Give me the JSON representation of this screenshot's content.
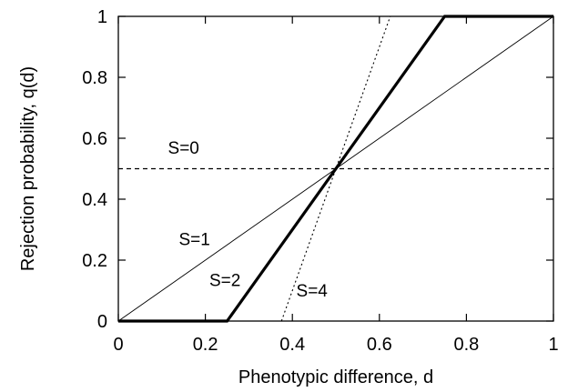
{
  "chart_data": {
    "type": "line",
    "xlabel": "Phenotypic difference, d",
    "ylabel": "Rejection probability, q(d)",
    "xlim": [
      0,
      1
    ],
    "ylim": [
      0,
      1
    ],
    "x_ticks": [
      "0",
      "0.2",
      "0.4",
      "0.6",
      "0.8",
      "1"
    ],
    "y_ticks": [
      "0",
      "0.2",
      "0.4",
      "0.6",
      "0.8",
      "1"
    ],
    "grid": false,
    "legend": "none",
    "series": [
      {
        "name": "S=0",
        "style": "dashed",
        "color": "#000000",
        "x": [
          0,
          1
        ],
        "y": [
          0.5,
          0.5
        ]
      },
      {
        "name": "S=1",
        "style": "thin",
        "color": "#000000",
        "x": [
          0,
          1
        ],
        "y": [
          0,
          1
        ]
      },
      {
        "name": "S=2",
        "style": "thick",
        "color": "#000000",
        "x": [
          0,
          0.25,
          0.75,
          1
        ],
        "y": [
          0,
          0,
          1,
          1
        ]
      },
      {
        "name": "S=4",
        "style": "dotted",
        "color": "#000000",
        "x": [
          0.375,
          0.625
        ],
        "y": [
          0,
          1
        ]
      }
    ],
    "annotations": [
      {
        "text": "S=0",
        "x": 0.15,
        "y": 0.55
      },
      {
        "text": "S=1",
        "x": 0.175,
        "y": 0.25
      },
      {
        "text": "S=2",
        "x": 0.245,
        "y": 0.115
      },
      {
        "text": "S=4",
        "x": 0.445,
        "y": 0.08
      }
    ]
  }
}
